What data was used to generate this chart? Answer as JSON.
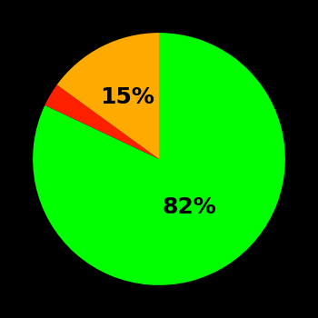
{
  "slices": [
    82,
    3,
    15
  ],
  "colors": [
    "#00ff00",
    "#ff2000",
    "#ffaa00"
  ],
  "labels": [
    "82%",
    "",
    "15%"
  ],
  "label_colors": [
    "#000000",
    "#000000",
    "#000000"
  ],
  "background_color": "#000000",
  "startangle": 90,
  "label_distance_green": 0.45,
  "label_distance_yellow": 0.55,
  "figsize": [
    3.5,
    3.5
  ],
  "dpi": 100
}
